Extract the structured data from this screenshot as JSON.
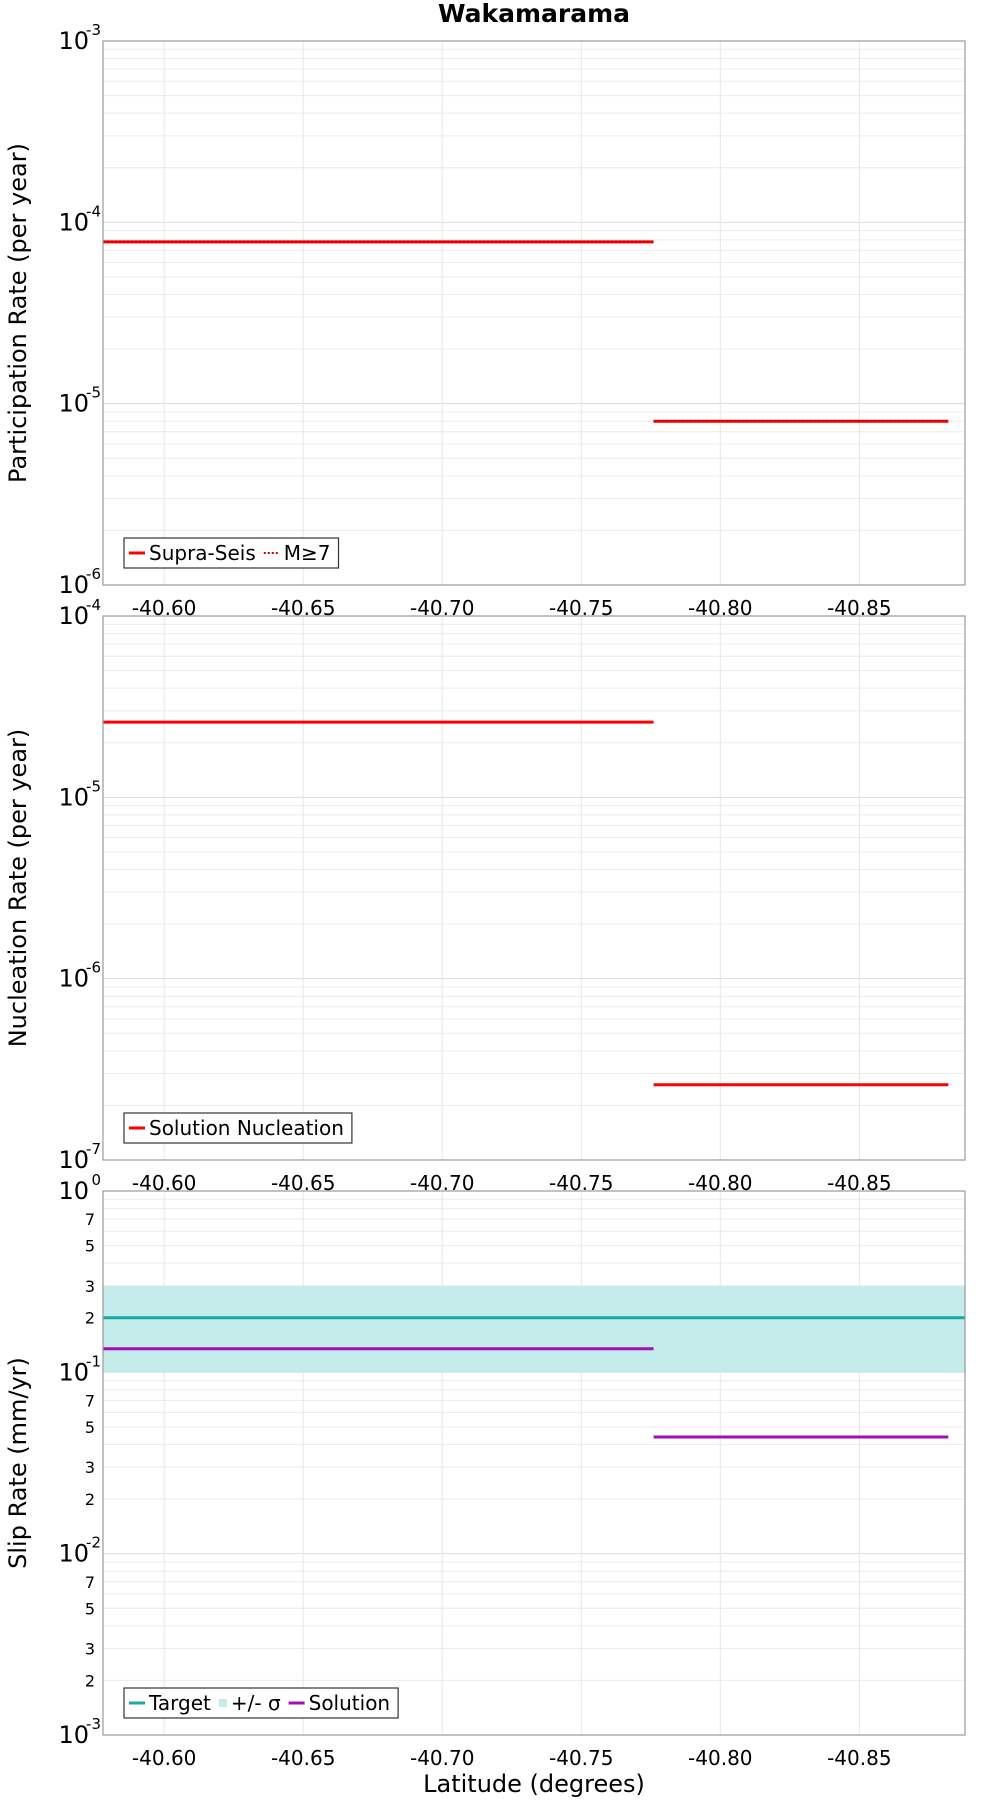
{
  "chart_data": [
    {
      "type": "line",
      "title": "Wakamarama",
      "ylabel": "Participation Rate (per year)",
      "xlabel": "",
      "yscale": "log",
      "ylim": [
        1e-06,
        0.001
      ],
      "xlim": [
        -40.578,
        -40.888
      ],
      "x_ticks": [
        "-40.60",
        "-40.65",
        "-40.70",
        "-40.75",
        "-40.80",
        "-40.85"
      ],
      "y_ticks": [
        {
          "base": "10",
          "exp": "-6"
        },
        {
          "base": "10",
          "exp": "-5"
        },
        {
          "base": "10",
          "exp": "-4"
        },
        {
          "base": "10",
          "exp": "-3"
        }
      ],
      "grid": true,
      "legend_position": "bottom-left",
      "legend": [
        {
          "label": "Supra-Seis",
          "style": "solid",
          "color": "#ff0000"
        },
        {
          "label": "M≥7",
          "style": "dotted",
          "color": "#ff0000"
        }
      ],
      "series": [
        {
          "name": "Supra-Seis",
          "style": "solid",
          "color": "#ff0000",
          "segments": [
            {
              "x": [
                -40.578,
                -40.776
              ],
              "y": 7.8e-05
            },
            {
              "x": [
                -40.776,
                -40.882
              ],
              "y": 8e-06
            }
          ]
        },
        {
          "name": "M≥7",
          "style": "dotted",
          "color": "#ff0000",
          "segments": [
            {
              "x": [
                -40.578,
                -40.776
              ],
              "y": 7.8e-05
            },
            {
              "x": [
                -40.776,
                -40.882
              ],
              "y": 8e-06
            }
          ]
        }
      ]
    },
    {
      "type": "line",
      "title": "",
      "ylabel": "Nucleation Rate (per year)",
      "xlabel": "",
      "yscale": "log",
      "ylim": [
        1e-07,
        0.0001
      ],
      "xlim": [
        -40.578,
        -40.888
      ],
      "x_ticks": [
        "-40.60",
        "-40.65",
        "-40.70",
        "-40.75",
        "-40.80",
        "-40.85"
      ],
      "y_ticks": [
        {
          "base": "10",
          "exp": "-7"
        },
        {
          "base": "10",
          "exp": "-6"
        },
        {
          "base": "10",
          "exp": "-5"
        },
        {
          "base": "10",
          "exp": "-4"
        }
      ],
      "grid": true,
      "legend_position": "bottom-left",
      "legend": [
        {
          "label": "Solution Nucleation",
          "style": "solid",
          "color": "#ff0000"
        }
      ],
      "series": [
        {
          "name": "Solution Nucleation",
          "style": "solid",
          "color": "#ff0000",
          "segments": [
            {
              "x": [
                -40.578,
                -40.776
              ],
              "y": 2.6e-05
            },
            {
              "x": [
                -40.776,
                -40.882
              ],
              "y": 2.6e-07
            }
          ]
        }
      ]
    },
    {
      "type": "line",
      "title": "",
      "ylabel": "Slip Rate (mm/yr)",
      "xlabel": "Latitude (degrees)",
      "yscale": "log",
      "ylim": [
        0.001,
        1
      ],
      "xlim": [
        -40.578,
        -40.888
      ],
      "x_ticks": [
        "-40.60",
        "-40.65",
        "-40.70",
        "-40.75",
        "-40.80",
        "-40.85"
      ],
      "y_ticks": [
        {
          "base": "10",
          "exp": "-3"
        },
        {
          "base": "10",
          "exp": "-2"
        },
        {
          "base": "10",
          "exp": "-1"
        },
        {
          "base": "10",
          "exp": "0"
        }
      ],
      "y_minor_labels": [
        "2",
        "3",
        "5",
        "7"
      ],
      "grid": true,
      "legend_position": "bottom-left",
      "legend": [
        {
          "label": "Target",
          "kind": "line",
          "color": "#1aa9a5"
        },
        {
          "label": "+/- σ",
          "kind": "band",
          "color": "#c4ecea"
        },
        {
          "label": "Solution",
          "kind": "line",
          "color": "#a40fb5"
        }
      ],
      "band": {
        "name": "+/- σ",
        "color": "#c4ecea",
        "x": [
          -40.578,
          -40.888
        ],
        "y_low": 0.1,
        "y_high": 0.3
      },
      "series": [
        {
          "name": "Target",
          "style": "solid",
          "color": "#1aa9a5",
          "segments": [
            {
              "x": [
                -40.578,
                -40.888
              ],
              "y": 0.2
            }
          ]
        },
        {
          "name": "Solution",
          "style": "solid",
          "color": "#a40fb5",
          "segments": [
            {
              "x": [
                -40.578,
                -40.776
              ],
              "y": 0.135
            },
            {
              "x": [
                -40.776,
                -40.882
              ],
              "y": 0.044
            }
          ]
        }
      ]
    }
  ]
}
